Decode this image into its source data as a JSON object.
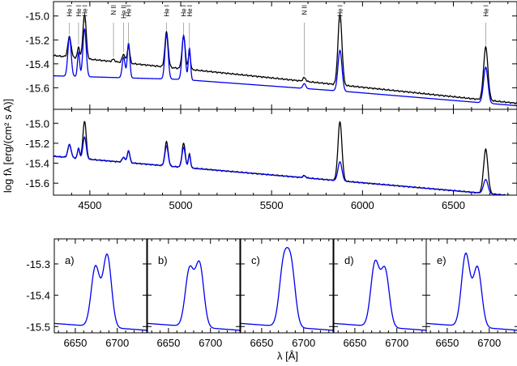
{
  "chart_data": [
    {
      "type": "line",
      "panel": "top",
      "ylabel": "log fλ [erg/(cm² s A)]",
      "xlim": [
        4300,
        6850
      ],
      "ylim": [
        -15.78,
        -14.88
      ],
      "yticks": [
        -15.0,
        -15.2,
        -15.4,
        -15.6
      ],
      "colors": {
        "observed": "#000000",
        "model": "#0000ee"
      },
      "line_labels": [
        {
          "text": "He I",
          "x": 4388
        },
        {
          "text": "He I",
          "x": 4438
        },
        {
          "text": "He I",
          "x": 4471
        },
        {
          "text": "N II",
          "x": 4630
        },
        {
          "text": "He II",
          "x": 4686
        },
        {
          "text": "He I",
          "x": 4713
        },
        {
          "text": "He I",
          "x": 4922
        },
        {
          "text": "He I",
          "x": 5016
        },
        {
          "text": "He I",
          "x": 5048
        },
        {
          "text": "N II",
          "x": 5680
        },
        {
          "text": "He I",
          "x": 5876
        },
        {
          "text": "He I",
          "x": 6678
        }
      ],
      "series": [
        {
          "continuum": [
            [
              4300,
              -15.33
            ],
            [
              5900,
              -15.58
            ],
            [
              6850,
              -15.73
            ]
          ],
          "lines": [
            [
              4388,
              0.17,
              9
            ],
            [
              4438,
              0.09,
              6
            ],
            [
              4471,
              0.37,
              9
            ],
            [
              4630,
              0.02,
              7
            ],
            [
              4686,
              0.07,
              8
            ],
            [
              4713,
              0.14,
              7
            ],
            [
              4922,
              0.29,
              9
            ],
            [
              5016,
              0.27,
              9
            ],
            [
              5048,
              0.14,
              6
            ],
            [
              5680,
              0.03,
              8
            ],
            [
              5876,
              0.59,
              11
            ],
            [
              6678,
              0.44,
              12
            ]
          ]
        },
        {
          "continuum": [
            [
              4300,
              -15.5
            ],
            [
              5000,
              -15.53
            ],
            [
              5900,
              -15.63
            ],
            [
              6850,
              -15.75
            ]
          ],
          "lines": [
            [
              4388,
              0.33,
              9
            ],
            [
              4438,
              0.2,
              6
            ],
            [
              4471,
              0.4,
              9
            ],
            [
              4686,
              0.17,
              8
            ],
            [
              4713,
              0.29,
              7
            ],
            [
              4922,
              0.37,
              9
            ],
            [
              5016,
              0.37,
              9
            ],
            [
              5048,
              0.27,
              6
            ],
            [
              5680,
              0.04,
              8
            ],
            [
              5876,
              0.34,
              11
            ],
            [
              6678,
              0.3,
              12
            ]
          ]
        }
      ]
    },
    {
      "type": "line",
      "panel": "middle",
      "xlim": [
        4300,
        6850
      ],
      "ylim": [
        -15.72,
        -14.86
      ],
      "yticks": [
        -15.0,
        -15.2,
        -15.4,
        -15.6
      ],
      "xticks": [
        4500,
        5000,
        5500,
        6000,
        6500
      ],
      "series": [
        {
          "continuum": [
            [
              4300,
              -15.33
            ],
            [
              5900,
              -15.58
            ],
            [
              6850,
              -15.73
            ]
          ],
          "lines": [
            [
              4388,
              0.13,
              9
            ],
            [
              4438,
              0.1,
              6
            ],
            [
              4471,
              0.38,
              9
            ],
            [
              4686,
              0.05,
              8
            ],
            [
              4713,
              0.12,
              7
            ],
            [
              4922,
              0.24,
              9
            ],
            [
              5016,
              0.24,
              9
            ],
            [
              5048,
              0.14,
              6
            ],
            [
              5680,
              0.02,
              8
            ],
            [
              5876,
              0.59,
              11
            ],
            [
              6678,
              0.44,
              12
            ]
          ]
        },
        {
          "continuum": [
            [
              4300,
              -15.33
            ],
            [
              5900,
              -15.58
            ],
            [
              6850,
              -15.73
            ]
          ],
          "lines": [
            [
              4388,
              0.13,
              9
            ],
            [
              4438,
              0.1,
              6
            ],
            [
              4471,
              0.22,
              9
            ],
            [
              4686,
              0.05,
              8
            ],
            [
              4713,
              0.12,
              7
            ],
            [
              4922,
              0.2,
              9
            ],
            [
              5016,
              0.2,
              9
            ],
            [
              5048,
              0.13,
              6
            ],
            [
              5680,
              0.02,
              8
            ],
            [
              5876,
              0.19,
              11
            ],
            [
              6678,
              0.14,
              12
            ]
          ]
        }
      ]
    },
    {
      "type": "line",
      "panel": "bottom",
      "xlabel": "λ [Å]",
      "xlim": [
        6625,
        6735
      ],
      "ylim": [
        -15.52,
        -15.22
      ],
      "yticks": [
        -15.3,
        -15.4,
        -15.5
      ],
      "xticks": [
        6650,
        6700
      ],
      "baseline": -15.49,
      "subplots": [
        {
          "label": "a)",
          "peaks": [
            [
              6674,
              0.19,
              5
            ],
            [
              6688,
              0.23,
              5
            ]
          ]
        },
        {
          "label": "b)",
          "peaks": [
            [
              6675,
              0.18,
              5
            ],
            [
              6687,
              0.2,
              5
            ]
          ]
        },
        {
          "label": "c)",
          "peaks": [
            [
              6676,
              0.19,
              5
            ],
            [
              6685,
              0.19,
              5
            ]
          ]
        },
        {
          "label": "d)",
          "peaks": [
            [
              6674,
              0.2,
              5
            ],
            [
              6686,
              0.18,
              5
            ]
          ]
        },
        {
          "label": "e)",
          "peaks": [
            [
              6672,
              0.23,
              5
            ],
            [
              6686,
              0.19,
              5
            ]
          ]
        }
      ]
    }
  ]
}
